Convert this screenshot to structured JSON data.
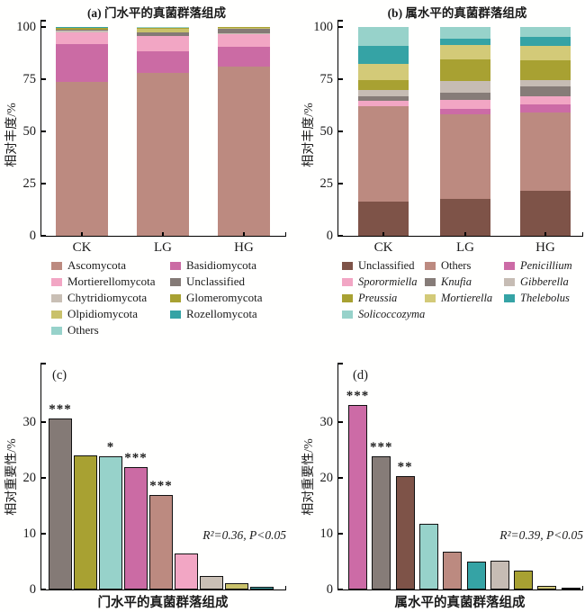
{
  "chart_data": [
    {
      "id": "a",
      "type": "stacked-bar",
      "title": "(a) 门水平的真菌群落组成",
      "ylabel": "相对丰度/%",
      "xlabel": "",
      "ylim": [
        0,
        100
      ],
      "yticks": [
        0,
        25,
        50,
        75,
        100
      ],
      "grid": false,
      "legend_position": "bottom",
      "categories": [
        "CK",
        "LG",
        "HG"
      ],
      "series": [
        {
          "name": "Ascomycota",
          "color": "#bc8a80",
          "values": [
            73.5,
            78.0,
            81.0
          ]
        },
        {
          "name": "Basidiomycota",
          "color": "#cb6ba4",
          "values": [
            18.5,
            10.5,
            9.5
          ]
        },
        {
          "name": "Mortierellomycota",
          "color": "#f2a6c4",
          "values": [
            5.5,
            7.0,
            6.0
          ]
        },
        {
          "name": "Chytridiomycota",
          "color": "#c9bfb5",
          "values": [
            0.6,
            0.4,
            0.3
          ]
        },
        {
          "name": "Unclassified",
          "color": "#847a76",
          "values": [
            0.6,
            1.6,
            2.4
          ]
        },
        {
          "name": "Olpidiomycota",
          "color": "#c9c16b",
          "values": [
            0.2,
            1.5,
            0.4
          ]
        },
        {
          "name": "Glomeromycota",
          "color": "#a8a132",
          "values": [
            0.9,
            0.6,
            0.3
          ]
        },
        {
          "name": "Rozellomycota",
          "color": "#35a3a5",
          "values": [
            0.1,
            0.2,
            0.05
          ]
        },
        {
          "name": "Others",
          "color": "#97d2ca",
          "values": [
            0.1,
            0.2,
            0.05
          ]
        }
      ],
      "legend_items": [
        {
          "label": "Ascomycota",
          "color": "#bc8a80",
          "italic": false
        },
        {
          "label": "Basidiomycota",
          "color": "#cb6ba4",
          "italic": false
        },
        {
          "label": "Mortierellomycota",
          "color": "#f2a6c4",
          "italic": false
        },
        {
          "label": "Unclassified",
          "color": "#847a76",
          "italic": false
        },
        {
          "label": "Chytridiomycota",
          "color": "#c9bfb5",
          "italic": false
        },
        {
          "label": "Glomeromycota",
          "color": "#a8a132",
          "italic": false
        },
        {
          "label": "Olpidiomycota",
          "color": "#c9c16b",
          "italic": false
        },
        {
          "label": "Rozellomycota",
          "color": "#35a3a5",
          "italic": false
        },
        {
          "label": "Others",
          "color": "#97d2ca",
          "italic": false
        }
      ]
    },
    {
      "id": "b",
      "type": "stacked-bar",
      "title": "(b) 属水平的真菌群落组成",
      "ylabel": "相对丰度/%",
      "xlabel": "",
      "ylim": [
        0,
        100
      ],
      "yticks": [
        0,
        25,
        50,
        75,
        100
      ],
      "grid": false,
      "legend_position": "bottom",
      "categories": [
        "CK",
        "LG",
        "HG"
      ],
      "series": [
        {
          "name": "Unclassified",
          "color": "#7e5348",
          "values": [
            16.5,
            17.5,
            21.5
          ]
        },
        {
          "name": "Others",
          "color": "#bc8a80",
          "values": [
            45.5,
            40.5,
            37.5
          ]
        },
        {
          "name": "Penicillium",
          "color": "#cc6ba6",
          "values": [
            0.3,
            3.0,
            4.0
          ]
        },
        {
          "name": "Sporormiella",
          "color": "#f2a6c4",
          "values": [
            2.2,
            4.0,
            4.0
          ]
        },
        {
          "name": "Knufia",
          "color": "#867c78",
          "values": [
            2.5,
            3.5,
            4.5
          ]
        },
        {
          "name": "Gibberella",
          "color": "#c6bcb4",
          "values": [
            3.0,
            5.5,
            3.0
          ]
        },
        {
          "name": "Preussia",
          "color": "#a8a132",
          "values": [
            4.5,
            10.5,
            9.5
          ]
        },
        {
          "name": "Mortierella",
          "color": "#d3ca78",
          "values": [
            8.0,
            7.0,
            7.0
          ]
        },
        {
          "name": "Thelebolus",
          "color": "#35a3a5",
          "values": [
            8.5,
            3.0,
            4.5
          ]
        },
        {
          "name": "Solicoccozyma",
          "color": "#97d2ca",
          "values": [
            9.0,
            5.5,
            4.5
          ]
        }
      ],
      "legend_items": [
        {
          "label": "Unclassified",
          "color": "#7e5348",
          "italic": false
        },
        {
          "label": "Others",
          "color": "#bc8a80",
          "italic": false
        },
        {
          "label": "Penicillium",
          "color": "#cc6ba6",
          "italic": true
        },
        {
          "label": "Sporormiella",
          "color": "#f2a6c4",
          "italic": true
        },
        {
          "label": "Knufia",
          "color": "#867c78",
          "italic": true
        },
        {
          "label": "Gibberella",
          "color": "#c6bcb4",
          "italic": true
        },
        {
          "label": "Preussia",
          "color": "#a8a132",
          "italic": true
        },
        {
          "label": "Mortierella",
          "color": "#d3ca78",
          "italic": true
        },
        {
          "label": "Thelebolus",
          "color": "#35a3a5",
          "italic": true
        },
        {
          "label": "Solicoccozyma",
          "color": "#97d2ca",
          "italic": true
        }
      ]
    },
    {
      "id": "c",
      "type": "bar",
      "panel_label": "(c)",
      "ylabel": "相对重要性/%",
      "xlabel": "门水平的真菌群落组成",
      "ylim": [
        0,
        40
      ],
      "yticks": [
        0,
        10,
        20,
        30
      ],
      "grid": false,
      "annotation": "R²=0.36, P<0.05",
      "bars": [
        {
          "name": "Unclassified",
          "color": "#847a76",
          "value": 30.7,
          "sig": "***"
        },
        {
          "name": "Glomeromycota",
          "color": "#a8a132",
          "value": 24.0,
          "sig": ""
        },
        {
          "name": "Others",
          "color": "#97d2ca",
          "value": 23.8,
          "sig": "*"
        },
        {
          "name": "Basidiomycota",
          "color": "#cb6ba4",
          "value": 22.0,
          "sig": "***"
        },
        {
          "name": "Ascomycota",
          "color": "#bc8a80",
          "value": 17.0,
          "sig": "***"
        },
        {
          "name": "Mortierellomycota",
          "color": "#f2a6c4",
          "value": 6.5,
          "sig": ""
        },
        {
          "name": "Chytridiomycota",
          "color": "#c9bfb5",
          "value": 2.4,
          "sig": ""
        },
        {
          "name": "Olpidiomycota",
          "color": "#c9c16b",
          "value": 1.2,
          "sig": ""
        },
        {
          "name": "Rozellomycota",
          "color": "#35a3a5",
          "value": 0.5,
          "sig": ""
        }
      ]
    },
    {
      "id": "d",
      "type": "bar",
      "panel_label": "(d)",
      "ylabel": "相对重要性/%",
      "xlabel": "属水平的真菌群落组成",
      "ylim": [
        0,
        40
      ],
      "yticks": [
        0,
        10,
        20,
        30
      ],
      "grid": false,
      "annotation": "R²=0.39, P<0.05",
      "bars": [
        {
          "name": "Penicillium",
          "color": "#cc6ba6",
          "value": 33.0,
          "sig": "***"
        },
        {
          "name": "Knufia",
          "color": "#867c78",
          "value": 23.8,
          "sig": "***"
        },
        {
          "name": "Unclassified",
          "color": "#7e5348",
          "value": 20.3,
          "sig": "**"
        },
        {
          "name": "Solicoccozyma",
          "color": "#97d2ca",
          "value": 11.8,
          "sig": ""
        },
        {
          "name": "Others",
          "color": "#bc8a80",
          "value": 6.8,
          "sig": ""
        },
        {
          "name": "Thelebolus",
          "color": "#35a3a5",
          "value": 5.0,
          "sig": ""
        },
        {
          "name": "Gibberella",
          "color": "#c6bcb4",
          "value": 5.2,
          "sig": ""
        },
        {
          "name": "Preussia",
          "color": "#a8a132",
          "value": 3.4,
          "sig": ""
        },
        {
          "name": "Mortierella",
          "color": "#d3ca78",
          "value": 0.6,
          "sig": ""
        },
        {
          "name": "Sporormiella",
          "color": "#f2a6c4",
          "value": 0.3,
          "sig": ""
        }
      ]
    }
  ]
}
